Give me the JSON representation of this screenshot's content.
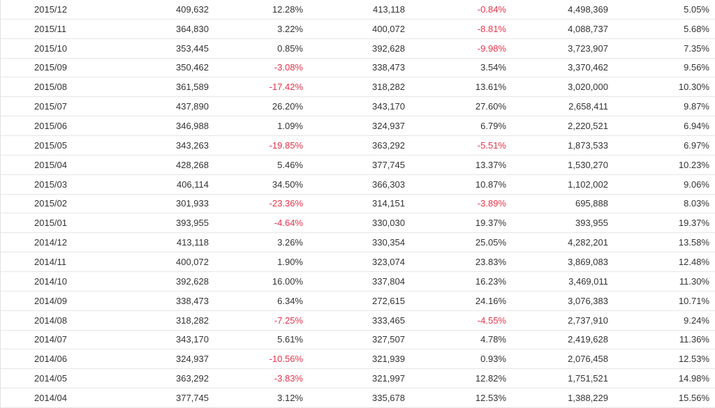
{
  "table": {
    "rows": [
      [
        "2015/12",
        "409,632",
        "12.28%",
        "413,118",
        "-0.84%",
        "4,498,369",
        "5.05%"
      ],
      [
        "2015/11",
        "364,830",
        "3.22%",
        "400,072",
        "-8.81%",
        "4,088,737",
        "5.68%"
      ],
      [
        "2015/10",
        "353,445",
        "0.85%",
        "392,628",
        "-9.98%",
        "3,723,907",
        "7.35%"
      ],
      [
        "2015/09",
        "350,462",
        "-3.08%",
        "338,473",
        "3.54%",
        "3,370,462",
        "9.56%"
      ],
      [
        "2015/08",
        "361,589",
        "-17.42%",
        "318,282",
        "13.61%",
        "3,020,000",
        "10.30%"
      ],
      [
        "2015/07",
        "437,890",
        "26.20%",
        "343,170",
        "27.60%",
        "2,658,411",
        "9.87%"
      ],
      [
        "2015/06",
        "346,988",
        "1.09%",
        "324,937",
        "6.79%",
        "2,220,521",
        "6.94%"
      ],
      [
        "2015/05",
        "343,263",
        "-19.85%",
        "363,292",
        "-5.51%",
        "1,873,533",
        "6.97%"
      ],
      [
        "2015/04",
        "428,268",
        "5.46%",
        "377,745",
        "13.37%",
        "1,530,270",
        "10.23%"
      ],
      [
        "2015/03",
        "406,114",
        "34.50%",
        "366,303",
        "10.87%",
        "1,102,002",
        "9.06%"
      ],
      [
        "2015/02",
        "301,933",
        "-23.36%",
        "314,151",
        "-3.89%",
        "695,888",
        "8.03%"
      ],
      [
        "2015/01",
        "393,955",
        "-4.64%",
        "330,030",
        "19.37%",
        "393,955",
        "19.37%"
      ],
      [
        "2014/12",
        "413,118",
        "3.26%",
        "330,354",
        "25.05%",
        "4,282,201",
        "13.58%"
      ],
      [
        "2014/11",
        "400,072",
        "1.90%",
        "323,074",
        "23.83%",
        "3,869,083",
        "12.48%"
      ],
      [
        "2014/10",
        "392,628",
        "16.00%",
        "337,804",
        "16.23%",
        "3,469,011",
        "11.30%"
      ],
      [
        "2014/09",
        "338,473",
        "6.34%",
        "272,615",
        "24.16%",
        "3,076,383",
        "10.71%"
      ],
      [
        "2014/08",
        "318,282",
        "-7.25%",
        "333,465",
        "-4.55%",
        "2,737,910",
        "9.24%"
      ],
      [
        "2014/07",
        "343,170",
        "5.61%",
        "327,507",
        "4.78%",
        "2,419,628",
        "11.36%"
      ],
      [
        "2014/06",
        "324,937",
        "-10.56%",
        "321,939",
        "0.93%",
        "2,076,458",
        "12.53%"
      ],
      [
        "2014/05",
        "363,292",
        "-3.83%",
        "321,997",
        "12.82%",
        "1,751,521",
        "14.98%"
      ],
      [
        "2014/04",
        "377,745",
        "3.12%",
        "335,678",
        "12.53%",
        "1,388,229",
        "15.56%"
      ]
    ]
  }
}
